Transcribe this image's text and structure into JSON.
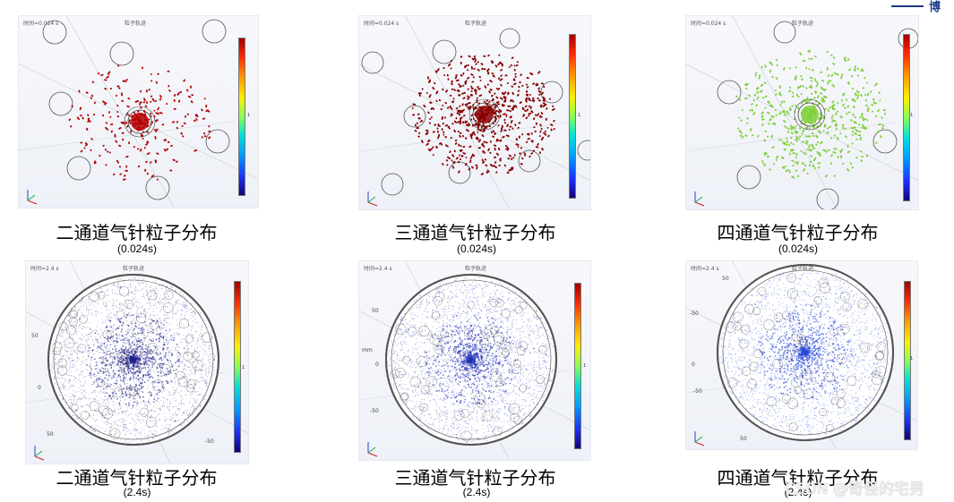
{
  "header": {
    "brand_char": "博"
  },
  "panels": [
    {
      "id": "two-early",
      "time_label": "时间=0.024 s",
      "plot_title": "粒子轨迹",
      "colorbar_tick": "1",
      "particle_color": "#b40000",
      "caption": "二通道气针粒子分布",
      "subcaption": "(0.024s)"
    },
    {
      "id": "three-early",
      "time_label": "时间=0.024 s",
      "plot_title": "粒子轨迹",
      "colorbar_tick": "1",
      "particle_color": "#8a0000",
      "caption": "三通道气针粒子分布",
      "subcaption": "(0.024s)"
    },
    {
      "id": "four-early",
      "time_label": "时间=0.024 s",
      "plot_title": "粒子轨迹",
      "colorbar_tick": "1",
      "particle_color": "#7fcf3a",
      "caption": "四通道气针粒子分布",
      "subcaption": "(0.024s)"
    },
    {
      "id": "two-late",
      "time_label": "时间=2.4 s",
      "plot_title": "粒子轨迹",
      "colorbar_tick": "1",
      "particle_color": "#1c1f8c",
      "axis_ticks": [
        "50",
        "0",
        "50",
        "-50"
      ],
      "caption": "二通道气针粒子分布",
      "subcaption": "(2.4s)"
    },
    {
      "id": "three-late",
      "time_label": "时间=2.4 s",
      "plot_title": "粒子轨迹",
      "colorbar_tick": "1",
      "particle_color": "#2030b8",
      "axis_ticks": [
        "50",
        "0",
        "-50",
        "mm"
      ],
      "caption": "三通道气针粒子分布",
      "subcaption": "(2.4s)"
    },
    {
      "id": "four-late",
      "time_label": "时间=2.4 s",
      "plot_title": "粒子轨迹",
      "colorbar_tick": "1",
      "particle_color": "#2446d8",
      "axis_ticks": [
        "-50",
        "50",
        "0",
        "-50",
        "50"
      ],
      "caption": "四通道气针粒子分布",
      "subcaption": "(2.4s)"
    }
  ],
  "watermark": "CSDN @奇怪的宅男"
}
